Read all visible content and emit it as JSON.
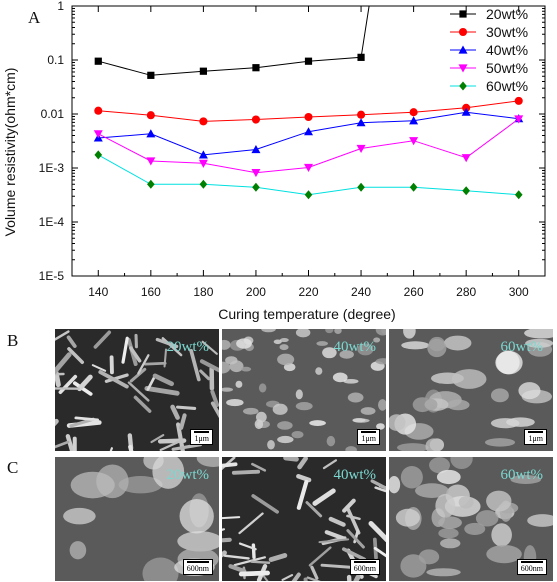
{
  "panel_labels": {
    "a": "A",
    "b": "B",
    "c": "C"
  },
  "chart_data": {
    "type": "line",
    "xlabel": "Curing temperature (degree)",
    "ylabel": "Volume resistivity(ohm*cm)",
    "yscale": "log",
    "ylim": [
      1e-05,
      1
    ],
    "xlim": [
      130,
      310
    ],
    "x": [
      140,
      160,
      180,
      200,
      220,
      240,
      260,
      280,
      300
    ],
    "x_ticks": [
      140,
      160,
      180,
      200,
      220,
      240,
      260,
      280,
      300
    ],
    "y_ticks": [
      {
        "value": 1e-05,
        "label": "1E-5"
      },
      {
        "value": 0.0001,
        "label": "1E-4"
      },
      {
        "value": 0.001,
        "label": "1E-3"
      },
      {
        "value": 0.01,
        "label": "0.01"
      },
      {
        "value": 0.1,
        "label": "0.1"
      },
      {
        "value": 1,
        "label": "1"
      }
    ],
    "legend_position": "top-right",
    "series": [
      {
        "name": "20wt%",
        "color": "#000000",
        "marker": "square",
        "values": [
          0.095,
          0.052,
          0.062,
          0.072,
          0.095,
          0.112,
          null,
          null,
          null
        ],
        "continues_off_scale_after": 240
      },
      {
        "name": "30wt%",
        "color": "#ff0000",
        "marker": "circle",
        "values": [
          0.0115,
          0.0095,
          0.0073,
          0.0079,
          0.0088,
          0.0097,
          0.0108,
          0.013,
          0.0175
        ]
      },
      {
        "name": "40wt%",
        "color": "#0000ff",
        "marker": "triangle-up",
        "values": [
          0.0036,
          0.0043,
          0.00175,
          0.0022,
          0.0047,
          0.0069,
          0.0075,
          0.0108,
          0.0082
        ]
      },
      {
        "name": "50wt%",
        "color": "#ff00ff",
        "marker": "triangle-down",
        "values": [
          0.0043,
          0.00135,
          0.00122,
          0.00082,
          0.00102,
          0.0023,
          0.0032,
          0.00155,
          0.0081
        ]
      },
      {
        "name": "60wt%",
        "color": "#008000",
        "line_color": "#00e0e0",
        "marker": "diamond",
        "values": [
          0.00175,
          0.0005,
          0.0005,
          0.00044,
          0.00032,
          0.00044,
          0.00044,
          0.00038,
          0.00032
        ]
      }
    ]
  },
  "sem_images": {
    "row_b": [
      {
        "label": "20wt%",
        "scale": "1μm"
      },
      {
        "label": "40wt%",
        "scale": "1μm"
      },
      {
        "label": "60wt%",
        "scale": "1μm"
      }
    ],
    "row_c": [
      {
        "label": "20wt%",
        "scale": "600nm"
      },
      {
        "label": "40wt%",
        "scale": "600nm"
      },
      {
        "label": "60wt%",
        "scale": "600nm"
      }
    ]
  }
}
